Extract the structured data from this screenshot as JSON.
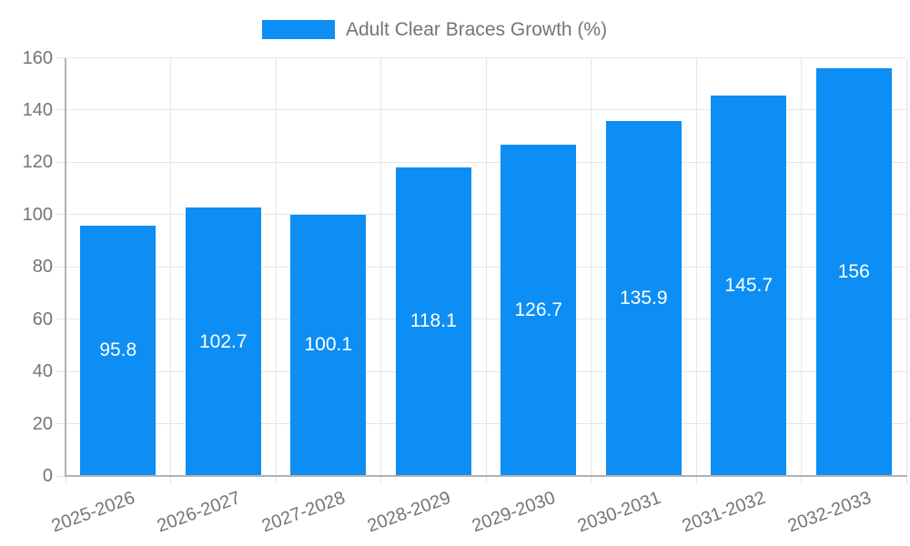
{
  "chart_data": {
    "type": "bar",
    "title": "",
    "legend_label": "Adult Clear Braces Growth (%)",
    "legend_position": "top",
    "categories": [
      "2025-2026",
      "2026-2027",
      "2027-2028",
      "2028-2029",
      "2029-2030",
      "2030-2031",
      "2031-2032",
      "2032-2033"
    ],
    "series": [
      {
        "name": "Adult Clear Braces Growth (%)",
        "values": [
          95.8,
          102.7,
          100.1,
          118.1,
          126.7,
          135.9,
          145.7,
          156
        ]
      }
    ],
    "value_labels": [
      "95.8",
      "102.7",
      "100.1",
      "118.1",
      "126.7",
      "135.9",
      "145.7",
      "156"
    ],
    "xlabel": "",
    "ylabel": "",
    "ylim": [
      0,
      160
    ],
    "ytick_step": 20,
    "ytick_labels": [
      "0",
      "20",
      "40",
      "60",
      "80",
      "100",
      "120",
      "140",
      "160"
    ],
    "grid": true,
    "colors": {
      "bar": "#0d8ef4",
      "grid": "#e6e6e6",
      "axis": "#b1b1b1",
      "tick_text": "#757575",
      "value_text": "#ffffff",
      "legend_text": "#757575"
    }
  }
}
